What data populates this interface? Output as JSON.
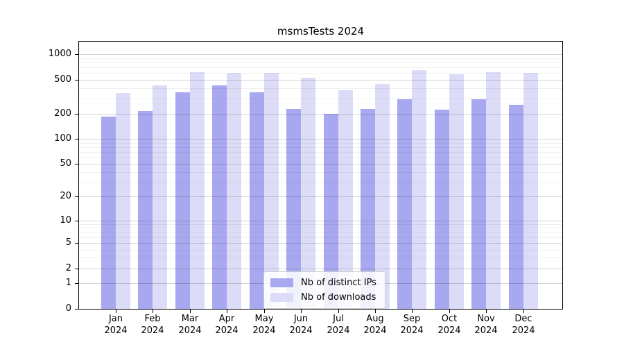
{
  "figure": {
    "title": "msmsTests 2024"
  },
  "chart_data": {
    "type": "bar",
    "title": "msmsTests 2024",
    "subtitle": "",
    "xlabel": "",
    "ylabel": "",
    "categories": [
      "Jan",
      "Feb",
      "Mar",
      "Apr",
      "May",
      "Jun",
      "Jul",
      "Aug",
      "Sep",
      "Oct",
      "Nov",
      "Dec"
    ],
    "x_year_label": "2024",
    "series": [
      {
        "name": "Nb of distinct IPs",
        "key": "ips",
        "color": "#a8a8f0",
        "values": [
          185,
          214,
          354,
          428,
          354,
          225,
          197,
          225,
          297,
          221,
          294,
          252
        ]
      },
      {
        "name": "Nb of downloads",
        "key": "downloads",
        "color": "#dcdcf8",
        "values": [
          349,
          428,
          613,
          604,
          604,
          528,
          380,
          445,
          657,
          580,
          618,
          606
        ]
      }
    ],
    "yscale": "log10(value+1)",
    "ytick_values": [
      0,
      1,
      2,
      5,
      10,
      20,
      50,
      100,
      200,
      500,
      1000
    ],
    "minor_grid_values": [
      3,
      4,
      6,
      7,
      8,
      9,
      30,
      40,
      60,
      70,
      80,
      90,
      300,
      400,
      600,
      700,
      800,
      900
    ],
    "ylim": [
      0,
      1412
    ],
    "grid": true,
    "legend_position": "inside-bottom-center",
    "gridline_major_color": "#d4d4d4",
    "gridline_minor_color": "#efefef",
    "axis_color": "#000000",
    "background_color": "#ffffff"
  }
}
